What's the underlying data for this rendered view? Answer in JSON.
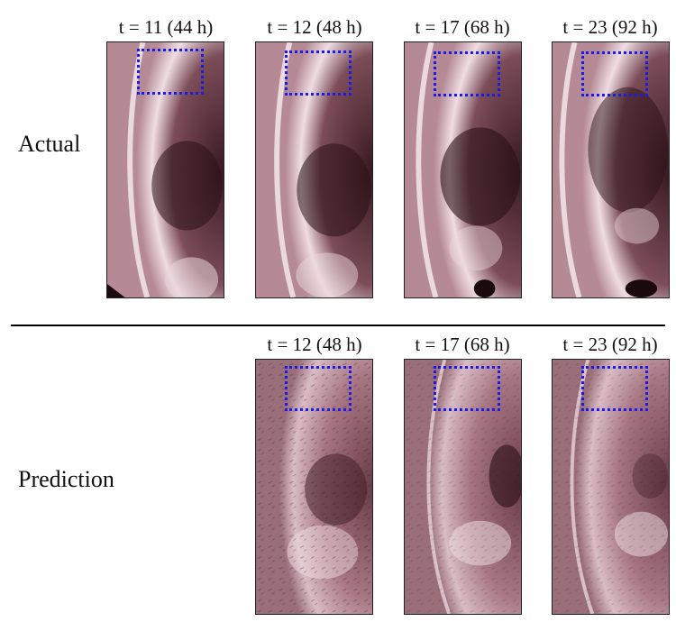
{
  "rows": {
    "actual_label": "Actual",
    "prediction_label": "Prediction"
  },
  "actual_frames": [
    {
      "title": "t = 11 (44 h)"
    },
    {
      "title": "t = 12 (48 h)"
    },
    {
      "title": "t = 17 (68 h)"
    },
    {
      "title": "t = 23 (92 h)"
    }
  ],
  "prediction_frames": [
    {
      "title": "t = 12 (48 h)"
    },
    {
      "title": "t = 17 (68 h)"
    },
    {
      "title": "t = 23 (92 h)"
    }
  ],
  "colors": {
    "roi_box": "#1a1aee",
    "sun_dark": "#2a1015",
    "sun_mid": "#8a5a66",
    "sun_light": "#f2e6ea"
  }
}
